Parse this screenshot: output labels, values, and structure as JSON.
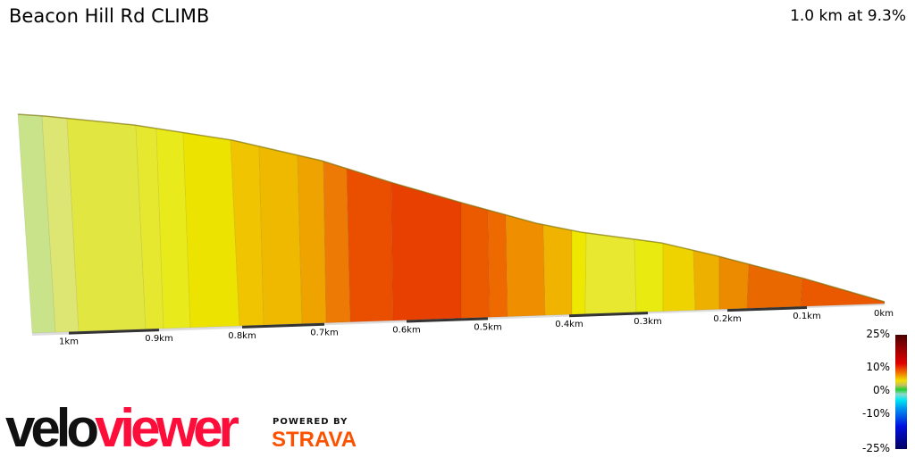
{
  "header": {
    "title": "Beacon Hill Rd CLIMB",
    "summary": "1.0 km at 9.3%"
  },
  "chart_data": {
    "type": "area",
    "title": "Beacon Hill Rd CLIMB",
    "x_tick_labels": [
      "1km",
      "0.9km",
      "0.8km",
      "0.7km",
      "0.6km",
      "0.5km",
      "0.4km",
      "0.3km",
      "0.2km",
      "0.1km",
      "0km"
    ],
    "segment_colors": [
      "#c8e38a",
      "#dde673",
      "#e2e640",
      "#e6e830",
      "#e9ea1c",
      "#ede300",
      "#f0c400",
      "#efb900",
      "#eea300",
      "#ec7a05",
      "#ea4f00",
      "#e84000",
      "#ec5a00",
      "#ee6a00",
      "#ef8f00",
      "#f0b400",
      "#eee800",
      "#e8e830",
      "#e8ea10",
      "#efd300",
      "#eeb000",
      "#ec8a00",
      "#ea6800",
      "#ea5800"
    ],
    "legend": {
      "labels": [
        "25%",
        "10%",
        "0%",
        "-10%",
        "-25%"
      ],
      "placement": "bottom-right"
    }
  },
  "branding": {
    "logo_velo": "velo",
    "logo_viewer": "viewer",
    "powered_by": "POWERED BY",
    "strava": "STRAVA"
  }
}
